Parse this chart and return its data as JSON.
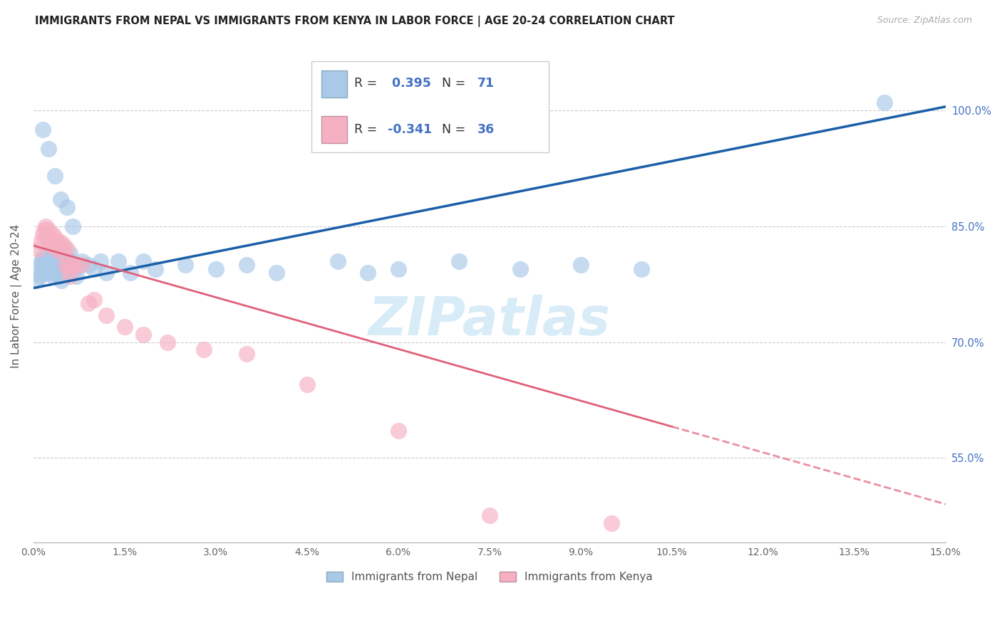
{
  "title": "IMMIGRANTS FROM NEPAL VS IMMIGRANTS FROM KENYA IN LABOR FORCE | AGE 20-24 CORRELATION CHART",
  "source": "Source: ZipAtlas.com",
  "xlim": [
    0.0,
    15.0
  ],
  "ylim": [
    44.0,
    108.0
  ],
  "ylabel": "In Labor Force | Age 20-24",
  "y_ticks": [
    55.0,
    70.0,
    85.0,
    100.0
  ],
  "x_ticks": [
    0.0,
    1.5,
    3.0,
    4.5,
    6.0,
    7.5,
    9.0,
    10.5,
    12.0,
    13.5,
    15.0
  ],
  "nepal_R": 0.395,
  "nepal_N": 71,
  "kenya_R": -0.341,
  "kenya_N": 36,
  "nepal_color": "#aac8e8",
  "kenya_color": "#f5b0c2",
  "nepal_line_color": "#1a5fa8",
  "kenya_line_color": "#e0607a",
  "nepal_line_y0": 77.0,
  "nepal_line_y1": 100.5,
  "kenya_line_y0": 82.5,
  "kenya_line_y1": 49.0,
  "kenya_dash_x": 10.5,
  "watermark_color": "#d8ecf8",
  "nepal_x": [
    0.05,
    0.08,
    0.1,
    0.12,
    0.13,
    0.15,
    0.16,
    0.18,
    0.19,
    0.2,
    0.21,
    0.22,
    0.23,
    0.25,
    0.25,
    0.27,
    0.28,
    0.29,
    0.3,
    0.31,
    0.32,
    0.33,
    0.34,
    0.35,
    0.36,
    0.38,
    0.39,
    0.4,
    0.41,
    0.42,
    0.44,
    0.45,
    0.46,
    0.48,
    0.5,
    0.52,
    0.54,
    0.56,
    0.58,
    0.6,
    0.62,
    0.65,
    0.7,
    0.75,
    0.8,
    0.9,
    1.0,
    1.1,
    1.2,
    1.4,
    1.6,
    1.8,
    2.0,
    2.5,
    3.0,
    3.5,
    4.0,
    5.0,
    5.5,
    6.0,
    7.0,
    8.0,
    9.0,
    10.0,
    0.15,
    0.25,
    0.35,
    0.45,
    0.55,
    0.65,
    14.0
  ],
  "nepal_y": [
    78.0,
    79.0,
    78.5,
    80.0,
    80.5,
    81.0,
    79.5,
    80.0,
    79.0,
    80.5,
    79.5,
    81.0,
    80.0,
    81.5,
    79.0,
    80.0,
    79.5,
    81.0,
    79.5,
    80.5,
    78.5,
    80.0,
    79.0,
    80.5,
    81.0,
    79.5,
    80.0,
    80.5,
    79.0,
    78.5,
    80.5,
    79.5,
    78.0,
    80.0,
    79.5,
    80.5,
    81.0,
    80.0,
    79.5,
    81.5,
    80.5,
    79.0,
    78.5,
    80.0,
    80.5,
    80.0,
    79.5,
    80.5,
    79.0,
    80.5,
    79.0,
    80.5,
    79.5,
    80.0,
    79.5,
    80.0,
    79.0,
    80.5,
    79.0,
    79.5,
    80.5,
    79.5,
    80.0,
    79.5,
    97.5,
    95.0,
    91.5,
    88.5,
    87.5,
    85.0,
    101.0
  ],
  "kenya_x": [
    0.08,
    0.12,
    0.15,
    0.18,
    0.2,
    0.22,
    0.25,
    0.27,
    0.3,
    0.32,
    0.35,
    0.38,
    0.4,
    0.43,
    0.45,
    0.48,
    0.5,
    0.53,
    0.55,
    0.58,
    0.6,
    0.65,
    0.7,
    0.8,
    0.9,
    1.0,
    1.2,
    1.5,
    1.8,
    2.2,
    2.8,
    3.5,
    4.5,
    6.0,
    7.5,
    9.5
  ],
  "kenya_y": [
    82.0,
    83.0,
    84.0,
    84.5,
    85.0,
    83.5,
    84.5,
    83.0,
    82.5,
    84.0,
    83.5,
    82.0,
    83.0,
    82.5,
    83.0,
    81.5,
    82.5,
    80.0,
    82.0,
    79.5,
    78.5,
    80.0,
    80.0,
    80.0,
    75.0,
    75.5,
    73.5,
    72.0,
    71.0,
    70.0,
    69.0,
    68.5,
    64.5,
    58.5,
    47.5,
    46.5
  ]
}
